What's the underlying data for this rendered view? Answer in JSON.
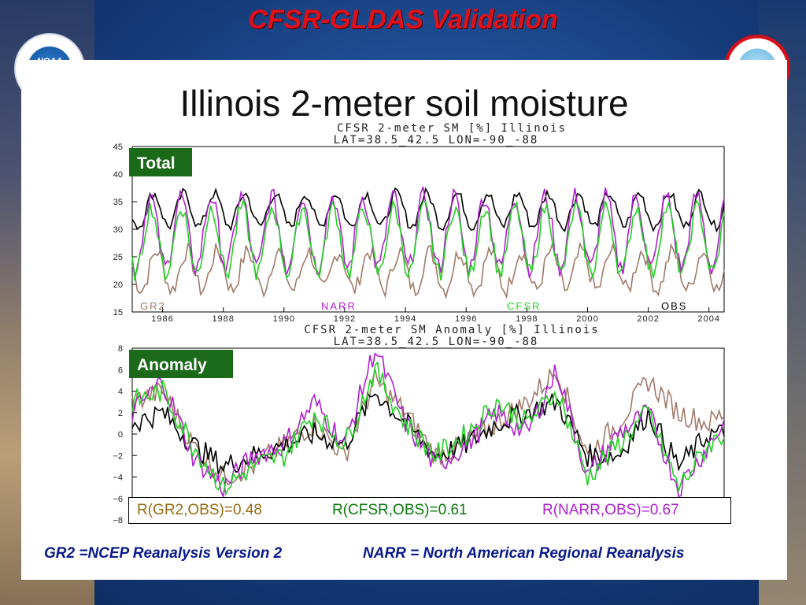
{
  "slide_title": "CFSR-GLDAS Validation",
  "headline": "Illinois 2-meter soil moisture",
  "logos": {
    "left": "NOAA",
    "right_text": "AL WEATHER S"
  },
  "colors": {
    "gr2": "#a07a6a",
    "narr": "#b020d0",
    "cfsr": "#22d022",
    "obs": "#000000",
    "badge": "#1a6a1a",
    "title": "#e0101a",
    "footer": "#0a1a8a"
  },
  "chart_data": [
    {
      "type": "line",
      "title": "CFSR 2-meter SM [%] Illinois",
      "subtitle": "LAT=38.5_42.5   LON=-90_-88",
      "badge": "Total",
      "xlabel": "",
      "ylabel": "",
      "xlim": [
        1985.5,
        2005.0
      ],
      "ylim": [
        15,
        45
      ],
      "yticks": [
        15,
        20,
        25,
        30,
        35,
        40,
        45
      ],
      "xticks": [
        "1986",
        "1988",
        "1990",
        "1992",
        "1994",
        "1996",
        "1998",
        "2000",
        "2002",
        "2004"
      ],
      "grid": false,
      "legend_labels": [
        "GR2",
        "NARR",
        "CFSR",
        "OBS"
      ],
      "series": [
        {
          "name": "GR2",
          "mean": 22.5,
          "amplitude": 3.5,
          "phase": 0.3,
          "noise": 1.6
        },
        {
          "name": "NARR",
          "mean": 29.5,
          "amplitude": 6.5,
          "phase": 0.1,
          "noise": 1.8
        },
        {
          "name": "CFSR",
          "mean": 28.0,
          "amplitude": 6.0,
          "phase": 0.12,
          "noise": 1.6
        },
        {
          "name": "OBS",
          "mean": 33.5,
          "amplitude": 3.0,
          "phase": 0.2,
          "noise": 1.0
        }
      ]
    },
    {
      "type": "line",
      "title": "CFSR 2-meter SM Anomaly [%] Illinois",
      "subtitle": "LAT=38.5_42.5   LON=-90_-88",
      "badge": "Anomaly",
      "xlim": [
        1985.5,
        2005.0
      ],
      "ylim": [
        -8,
        8
      ],
      "yticks": [
        -8,
        -6,
        -4,
        -2,
        0,
        2,
        4,
        6,
        8
      ],
      "grid": false,
      "series": [
        {
          "name": "GR2",
          "anchors": [
            [
              1985.5,
              3
            ],
            [
              1986.5,
              4
            ],
            [
              1987.5,
              -1
            ],
            [
              1988.5,
              -4
            ],
            [
              1989.5,
              -3
            ],
            [
              1990.5,
              -1
            ],
            [
              1991.5,
              1
            ],
            [
              1992.5,
              -2
            ],
            [
              1993.5,
              5
            ],
            [
              1994.5,
              2
            ],
            [
              1995.5,
              -2
            ],
            [
              1996.5,
              -1
            ],
            [
              1997.5,
              1
            ],
            [
              1998.5,
              3
            ],
            [
              1999.5,
              6
            ],
            [
              2000.5,
              -2
            ],
            [
              2001.5,
              1
            ],
            [
              2002.5,
              5
            ],
            [
              2003.5,
              2
            ],
            [
              2004.5,
              1
            ],
            [
              2005,
              2
            ]
          ]
        },
        {
          "name": "NARR",
          "anchors": [
            [
              1985.5,
              2
            ],
            [
              1986.5,
              5
            ],
            [
              1987.5,
              -2
            ],
            [
              1988.5,
              -5
            ],
            [
              1989.5,
              -2
            ],
            [
              1990.5,
              -1
            ],
            [
              1991.5,
              3
            ],
            [
              1992.5,
              -1
            ],
            [
              1993.5,
              8
            ],
            [
              1994.5,
              1
            ],
            [
              1995.5,
              -3
            ],
            [
              1996.5,
              -1
            ],
            [
              1997.5,
              2
            ],
            [
              1998.5,
              0
            ],
            [
              1999.5,
              6
            ],
            [
              2000.5,
              -4
            ],
            [
              2001.5,
              0
            ],
            [
              2002.5,
              2
            ],
            [
              2003.5,
              -5
            ],
            [
              2004.5,
              -1
            ],
            [
              2005,
              1
            ]
          ]
        },
        {
          "name": "CFSR",
          "anchors": [
            [
              1985.5,
              3
            ],
            [
              1986.5,
              4
            ],
            [
              1987.5,
              -1
            ],
            [
              1988.5,
              -5
            ],
            [
              1989.5,
              -3
            ],
            [
              1990.5,
              -2
            ],
            [
              1991.5,
              2
            ],
            [
              1992.5,
              -1
            ],
            [
              1993.5,
              6
            ],
            [
              1994.5,
              1
            ],
            [
              1995.5,
              -2
            ],
            [
              1996.5,
              0
            ],
            [
              1997.5,
              3
            ],
            [
              1998.5,
              1
            ],
            [
              1999.5,
              4
            ],
            [
              2000.5,
              -4
            ],
            [
              2001.5,
              -1
            ],
            [
              2002.5,
              2
            ],
            [
              2003.5,
              -5
            ],
            [
              2004.5,
              -1
            ],
            [
              2005,
              0
            ]
          ]
        },
        {
          "name": "OBS",
          "anchors": [
            [
              1985.5,
              1
            ],
            [
              1986.5,
              2
            ],
            [
              1987.5,
              -1
            ],
            [
              1988.5,
              -3
            ],
            [
              1989.5,
              -2
            ],
            [
              1990.5,
              -1
            ],
            [
              1991.5,
              0
            ],
            [
              1992.5,
              -1
            ],
            [
              1993.5,
              4
            ],
            [
              1994.5,
              1
            ],
            [
              1995.5,
              -2
            ],
            [
              1996.5,
              -1
            ],
            [
              1997.5,
              1
            ],
            [
              1998.5,
              2
            ],
            [
              1999.5,
              3
            ],
            [
              2000.5,
              -2
            ],
            [
              2001.5,
              -2
            ],
            [
              2002.5,
              2
            ],
            [
              2003.5,
              -3
            ],
            [
              2004.5,
              0
            ],
            [
              2005,
              0
            ]
          ]
        }
      ]
    }
  ],
  "correlations": {
    "gr2": "R(GR2,OBS)=0.48",
    "cfsr": "R(CFSR,OBS)=0.61",
    "narr": "R(NARR,OBS)=0.67"
  },
  "footer": {
    "left": "GR2 =NCEP Reanalysis Version 2",
    "right": "NARR = North American Regional Reanalysis"
  }
}
